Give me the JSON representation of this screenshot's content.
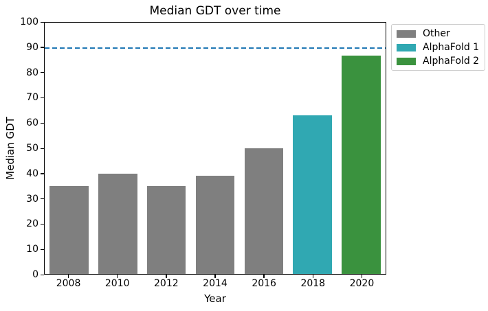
{
  "chart_data": {
    "type": "bar",
    "title": "Median GDT over time",
    "xlabel": "Year",
    "ylabel": "Median GDT",
    "categories": [
      "2008",
      "2010",
      "2012",
      "2014",
      "2016",
      "2018",
      "2020"
    ],
    "values": [
      35,
      40,
      35,
      39,
      50,
      63,
      87
    ],
    "bar_series": [
      "Other",
      "Other",
      "Other",
      "Other",
      "Other",
      "AlphaFold 1",
      "AlphaFold 2"
    ],
    "bar_colors": [
      "#7f7f7f",
      "#7f7f7f",
      "#7f7f7f",
      "#7f7f7f",
      "#7f7f7f",
      "#30a8b2",
      "#3a923e"
    ],
    "ylim": [
      0,
      100
    ],
    "ytick_step": 10,
    "grid": false,
    "bar_width_fraction": 0.8,
    "reference_line": {
      "value": 90,
      "color": "#1f77b4",
      "style": "dashed"
    },
    "legend": {
      "position": "upper-right-outside",
      "entries": [
        {
          "label": "Other",
          "color": "#7f7f7f"
        },
        {
          "label": "AlphaFold 1",
          "color": "#30a8b2"
        },
        {
          "label": "AlphaFold 2",
          "color": "#3a923e"
        }
      ]
    },
    "colors": {
      "axes": "#000000",
      "background": "#ffffff",
      "legend_border": "#cccccc"
    }
  }
}
